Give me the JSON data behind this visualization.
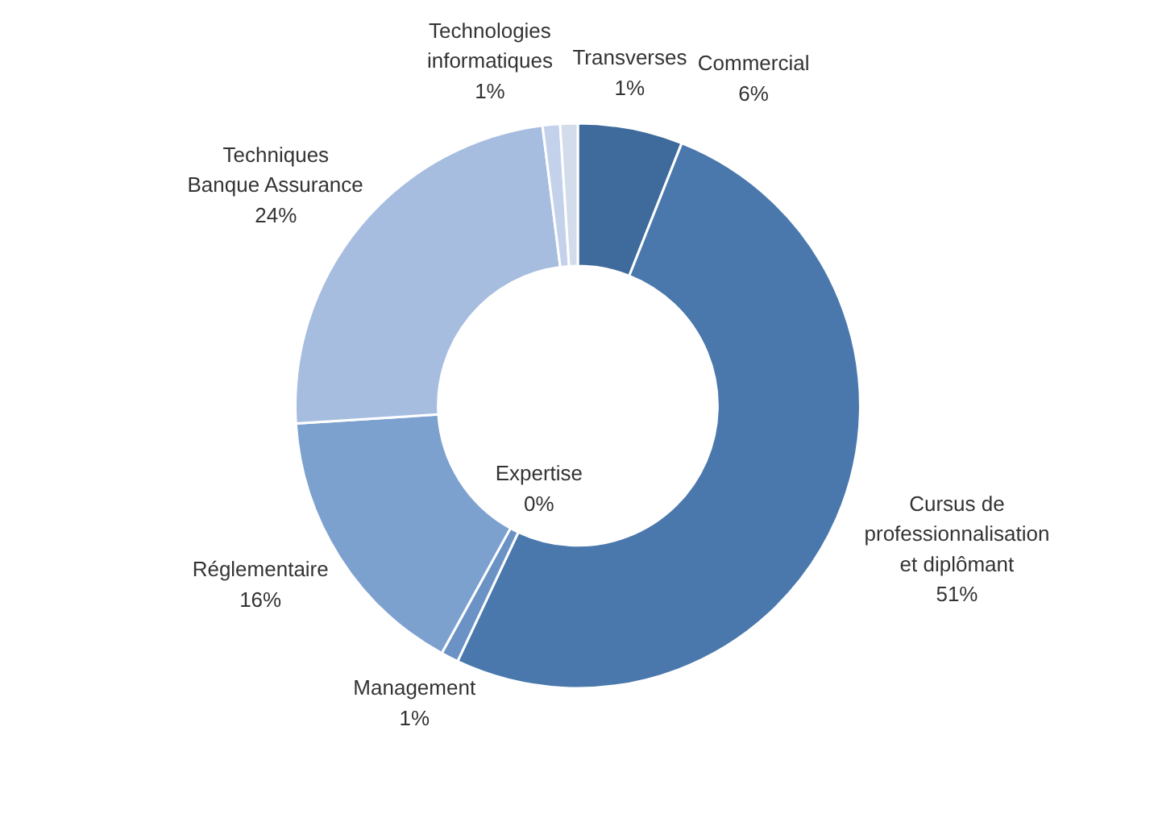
{
  "chart_data": {
    "type": "donut",
    "categories": [
      "Commercial",
      "Cursus de\nprofessionnalisation\net diplômant",
      "Expertise",
      "Management",
      "Réglementaire",
      "Techniques\nBanque Assurance",
      "Technologies\ninformatiques",
      "Transverses"
    ],
    "values": [
      6,
      51,
      0,
      1,
      16,
      24,
      1,
      1
    ],
    "value_labels": [
      "6%",
      "51%",
      "0%",
      "1%",
      "16%",
      "24%",
      "1%",
      "1%"
    ],
    "colors": [
      "#3f6b9c",
      "#4a78ad",
      "#5a86ba",
      "#6a92c4",
      "#7da1cf",
      "#a6bde0",
      "#c3d2ea",
      "#d3dcea"
    ]
  }
}
